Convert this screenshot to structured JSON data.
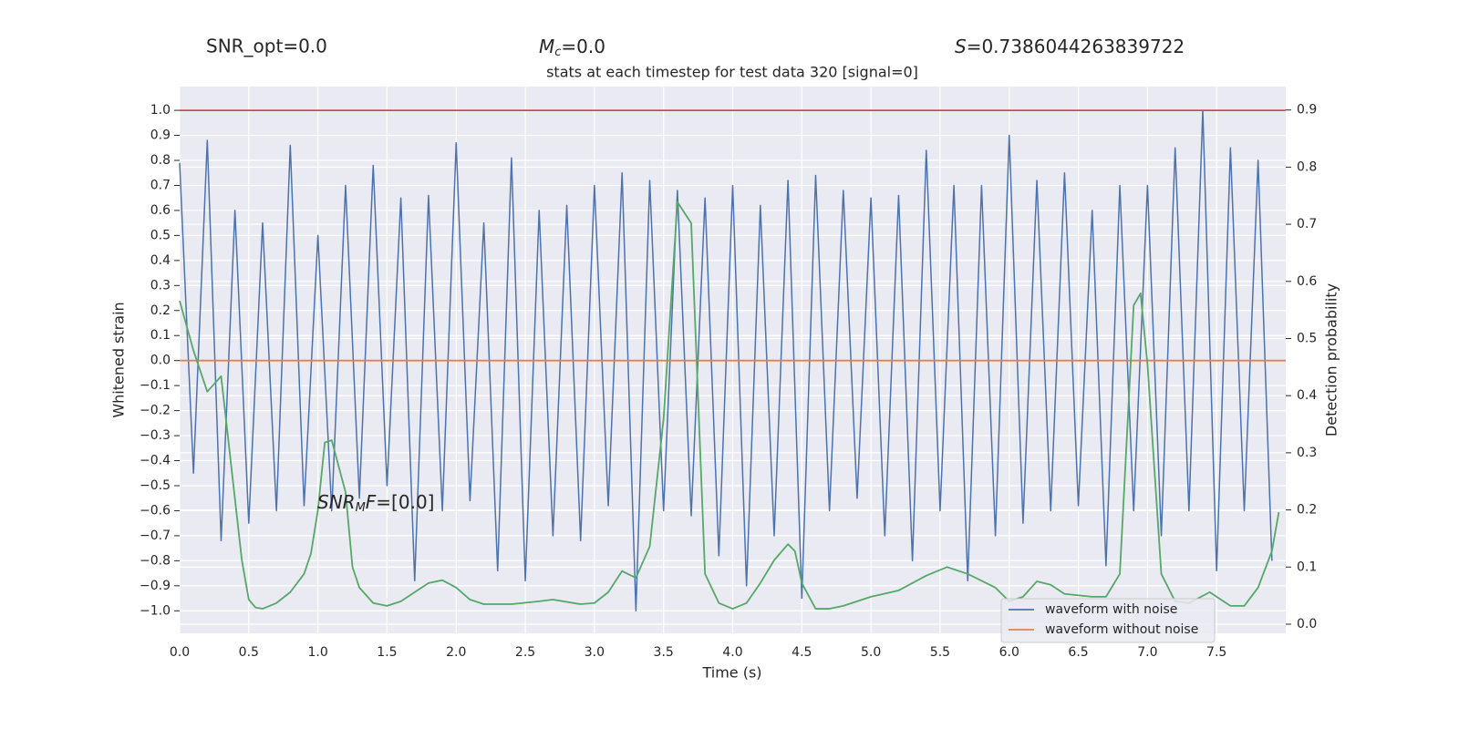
{
  "chart_data": {
    "type": "line",
    "title": "stats at each timestep for test data 320 [signal=0]",
    "xlabel": "Time (s)",
    "ylabel": "Whitened strain",
    "y2label": "Detection probability",
    "annotations": {
      "snr_opt": "SNR_opt=0.0",
      "mc": {
        "main": "M",
        "sub": "c",
        "rest": "=0.0"
      },
      "s": {
        "main": "S",
        "rest": "=0.7386044263839722"
      },
      "snr_mf": {
        "main": "SNR",
        "sub": "M",
        "mid": "F",
        "rest": "=[0.0]"
      }
    },
    "xlim": [
      0,
      8.0
    ],
    "ylim": [
      -1.09,
      1.095
    ],
    "y2lim": [
      -0.016,
      0.941
    ],
    "xticks": [
      {
        "value": 0,
        "label": "0.0"
      },
      {
        "value": 0.5,
        "label": "0.5"
      },
      {
        "value": 1,
        "label": "1.0"
      },
      {
        "value": 1.5,
        "label": "1.5"
      },
      {
        "value": 2,
        "label": "2.0"
      },
      {
        "value": 2.5,
        "label": "2.5"
      },
      {
        "value": 3,
        "label": "3.0"
      },
      {
        "value": 3.5,
        "label": "3.5"
      },
      {
        "value": 4,
        "label": "4.0"
      },
      {
        "value": 4.5,
        "label": "4.5"
      },
      {
        "value": 5,
        "label": "5.0"
      },
      {
        "value": 5.5,
        "label": "5.5"
      },
      {
        "value": 6,
        "label": "6.0"
      },
      {
        "value": 6.5,
        "label": "6.5"
      },
      {
        "value": 7,
        "label": "7.0"
      },
      {
        "value": 7.5,
        "label": "7.5"
      }
    ],
    "yticks": [
      {
        "value": -1,
        "label": "−1.0"
      },
      {
        "value": -0.9,
        "label": "−0.9"
      },
      {
        "value": -0.8,
        "label": "−0.8"
      },
      {
        "value": -0.7,
        "label": "−0.7"
      },
      {
        "value": -0.6,
        "label": "−0.6"
      },
      {
        "value": -0.5,
        "label": "−0.5"
      },
      {
        "value": -0.4,
        "label": "−0.4"
      },
      {
        "value": -0.3,
        "label": "−0.3"
      },
      {
        "value": -0.2,
        "label": "−0.2"
      },
      {
        "value": -0.1,
        "label": "−0.1"
      },
      {
        "value": 0,
        "label": "0.0"
      },
      {
        "value": 0.1,
        "label": "0.1"
      },
      {
        "value": 0.2,
        "label": "0.2"
      },
      {
        "value": 0.3,
        "label": "0.3"
      },
      {
        "value": 0.4,
        "label": "0.4"
      },
      {
        "value": 0.5,
        "label": "0.5"
      },
      {
        "value": 0.6,
        "label": "0.6"
      },
      {
        "value": 0.7,
        "label": "0.7"
      },
      {
        "value": 0.8,
        "label": "0.8"
      },
      {
        "value": 0.9,
        "label": "0.9"
      },
      {
        "value": 1,
        "label": "1.0"
      }
    ],
    "y2ticks": [
      {
        "value": 0,
        "label": "0.0"
      },
      {
        "value": 0.1,
        "label": "0.1"
      },
      {
        "value": 0.2,
        "label": "0.2"
      },
      {
        "value": 0.3,
        "label": "0.3"
      },
      {
        "value": 0.4,
        "label": "0.4"
      },
      {
        "value": 0.5,
        "label": "0.5"
      },
      {
        "value": 0.6,
        "label": "0.6"
      },
      {
        "value": 0.7,
        "label": "0.7"
      },
      {
        "value": 0.8,
        "label": "0.8"
      },
      {
        "value": 0.9,
        "label": "0.9"
      }
    ],
    "grid": true,
    "legend": "lower right",
    "series": [
      {
        "name": "waveform with noise",
        "color": "#4c72b0",
        "x": [
          0.0,
          0.1,
          0.2,
          0.3,
          0.4,
          0.5,
          0.6,
          0.7,
          0.8,
          0.9,
          1.0,
          1.1,
          1.2,
          1.3,
          1.4,
          1.5,
          1.6,
          1.7,
          1.8,
          1.9,
          2.0,
          2.1,
          2.2,
          2.3,
          2.4,
          2.5,
          2.6,
          2.7,
          2.8,
          2.9,
          3.0,
          3.1,
          3.2,
          3.3,
          3.4,
          3.5,
          3.6,
          3.7,
          3.8,
          3.9,
          4.0,
          4.1,
          4.2,
          4.3,
          4.4,
          4.5,
          4.6,
          4.7,
          4.8,
          4.9,
          5.0,
          5.1,
          5.2,
          5.3,
          5.4,
          5.5,
          5.6,
          5.7,
          5.8,
          5.9,
          6.0,
          6.1,
          6.2,
          6.3,
          6.4,
          6.5,
          6.6,
          6.7,
          6.8,
          6.9,
          7.0,
          7.1,
          7.2,
          7.3,
          7.4,
          7.5,
          7.6,
          7.7,
          7.8,
          7.9
        ],
        "values": [
          0.79,
          -0.45,
          0.88,
          -0.72,
          0.6,
          -0.65,
          0.55,
          -0.6,
          0.86,
          -0.58,
          0.5,
          -0.6,
          0.7,
          -0.55,
          0.78,
          -0.5,
          0.65,
          -0.88,
          0.66,
          -0.6,
          0.87,
          -0.56,
          0.55,
          -0.84,
          0.81,
          -0.88,
          0.6,
          -0.7,
          0.62,
          -0.72,
          0.7,
          -0.58,
          0.75,
          -1.0,
          0.72,
          -0.6,
          0.68,
          -0.62,
          0.65,
          -0.78,
          0.7,
          -0.9,
          0.62,
          -0.7,
          0.72,
          -0.95,
          0.74,
          -0.6,
          0.68,
          -0.55,
          0.65,
          -0.7,
          0.66,
          -0.8,
          0.84,
          -0.6,
          0.7,
          -0.88,
          0.7,
          -0.7,
          0.9,
          -0.65,
          0.72,
          -0.6,
          0.75,
          -0.58,
          0.6,
          -0.82,
          0.7,
          -0.6,
          0.7,
          -0.7,
          0.85,
          -0.6,
          1.0,
          -0.84,
          0.85,
          -0.6,
          0.8,
          -0.8
        ]
      },
      {
        "name": "waveform without noise",
        "color": "#dd8452",
        "x": [
          0,
          8.0
        ],
        "values": [
          0,
          0
        ]
      },
      {
        "color": "#c44e52",
        "x": [
          0,
          8.0
        ],
        "values": [
          1.0,
          1.0
        ]
      },
      {
        "color": "#55a868",
        "axis": "y2",
        "x": [
          0,
          0.1,
          0.2,
          0.3,
          0.45,
          0.5,
          0.55,
          0.6,
          0.7,
          0.8,
          0.9,
          0.95,
          1.0,
          1.05,
          1.1,
          1.2,
          1.25,
          1.3,
          1.4,
          1.5,
          1.6,
          1.7,
          1.8,
          1.9,
          2.0,
          2.1,
          2.2,
          2.4,
          2.6,
          2.7,
          2.9,
          3.0,
          3.1,
          3.2,
          3.3,
          3.4,
          3.5,
          3.6,
          3.7,
          3.8,
          3.9,
          4.0,
          4.1,
          4.2,
          4.3,
          4.4,
          4.45,
          4.5,
          4.6,
          4.7,
          4.8,
          5.0,
          5.2,
          5.4,
          5.55,
          5.7,
          5.9,
          6.0,
          6.1,
          6.2,
          6.3,
          6.4,
          6.6,
          6.7,
          6.8,
          6.9,
          6.95,
          7.0,
          7.1,
          7.2,
          7.3,
          7.45,
          7.6,
          7.7,
          7.8,
          7.9,
          7.95
        ],
        "values": [
          0.566,
          0.479,
          0.407,
          0.434,
          0.112,
          0.043,
          0.029,
          0.027,
          0.037,
          0.056,
          0.088,
          0.124,
          0.2,
          0.318,
          0.322,
          0.231,
          0.1,
          0.064,
          0.037,
          0.032,
          0.04,
          0.056,
          0.072,
          0.077,
          0.064,
          0.043,
          0.035,
          0.035,
          0.04,
          0.043,
          0.035,
          0.037,
          0.056,
          0.093,
          0.081,
          0.136,
          0.359,
          0.739,
          0.702,
          0.088,
          0.037,
          0.027,
          0.037,
          0.072,
          0.112,
          0.14,
          0.128,
          0.072,
          0.027,
          0.027,
          0.032,
          0.048,
          0.059,
          0.085,
          0.1,
          0.088,
          0.064,
          0.04,
          0.048,
          0.075,
          0.069,
          0.053,
          0.048,
          0.048,
          0.088,
          0.558,
          0.579,
          0.455,
          0.088,
          0.04,
          0.037,
          0.056,
          0.032,
          0.032,
          0.064,
          0.128,
          0.196
        ]
      }
    ]
  }
}
